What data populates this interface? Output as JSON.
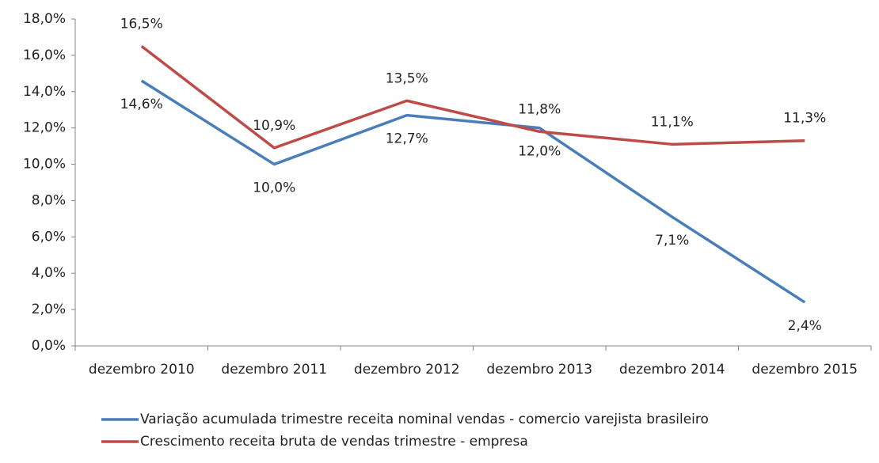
{
  "chart_data": {
    "type": "line",
    "categories": [
      "dezembro 2010",
      "dezembro 2011",
      "dezembro 2012",
      "dezembro 2013",
      "dezembro 2014",
      "dezembro 2015"
    ],
    "series": [
      {
        "name": "Variação acumulada trimestre receita nominal vendas - comercio varejista brasileiro",
        "color": "#4a7ebb",
        "values": [
          14.6,
          10.0,
          12.7,
          12.0,
          7.1,
          2.4
        ],
        "value_labels": [
          "14,6%",
          "10,0%",
          "12,7%",
          "12,0%",
          "7,1%",
          "2,4%"
        ]
      },
      {
        "name": "Crescimento receita bruta de vendas trimestre - empresa",
        "color": "#be4b48",
        "values": [
          16.5,
          10.9,
          13.5,
          11.8,
          11.1,
          11.3
        ],
        "value_labels": [
          "16,5%",
          "10,9%",
          "13,5%",
          "11,8%",
          "11,1%",
          "11,3%"
        ]
      }
    ],
    "ylim": [
      0,
      18
    ],
    "yticks": [
      {
        "value": 0,
        "label": "0,0%"
      },
      {
        "value": 2,
        "label": "2,0%"
      },
      {
        "value": 4,
        "label": "4,0%"
      },
      {
        "value": 6,
        "label": "6,0%"
      },
      {
        "value": 8,
        "label": "8,0%"
      },
      {
        "value": 10,
        "label": "10,0%"
      },
      {
        "value": 12,
        "label": "12,0%"
      },
      {
        "value": 14,
        "label": "14,0%"
      },
      {
        "value": 16,
        "label": "16,0%"
      },
      {
        "value": 18,
        "label": "18,0%"
      }
    ],
    "grid": false,
    "legend": "bottom"
  }
}
